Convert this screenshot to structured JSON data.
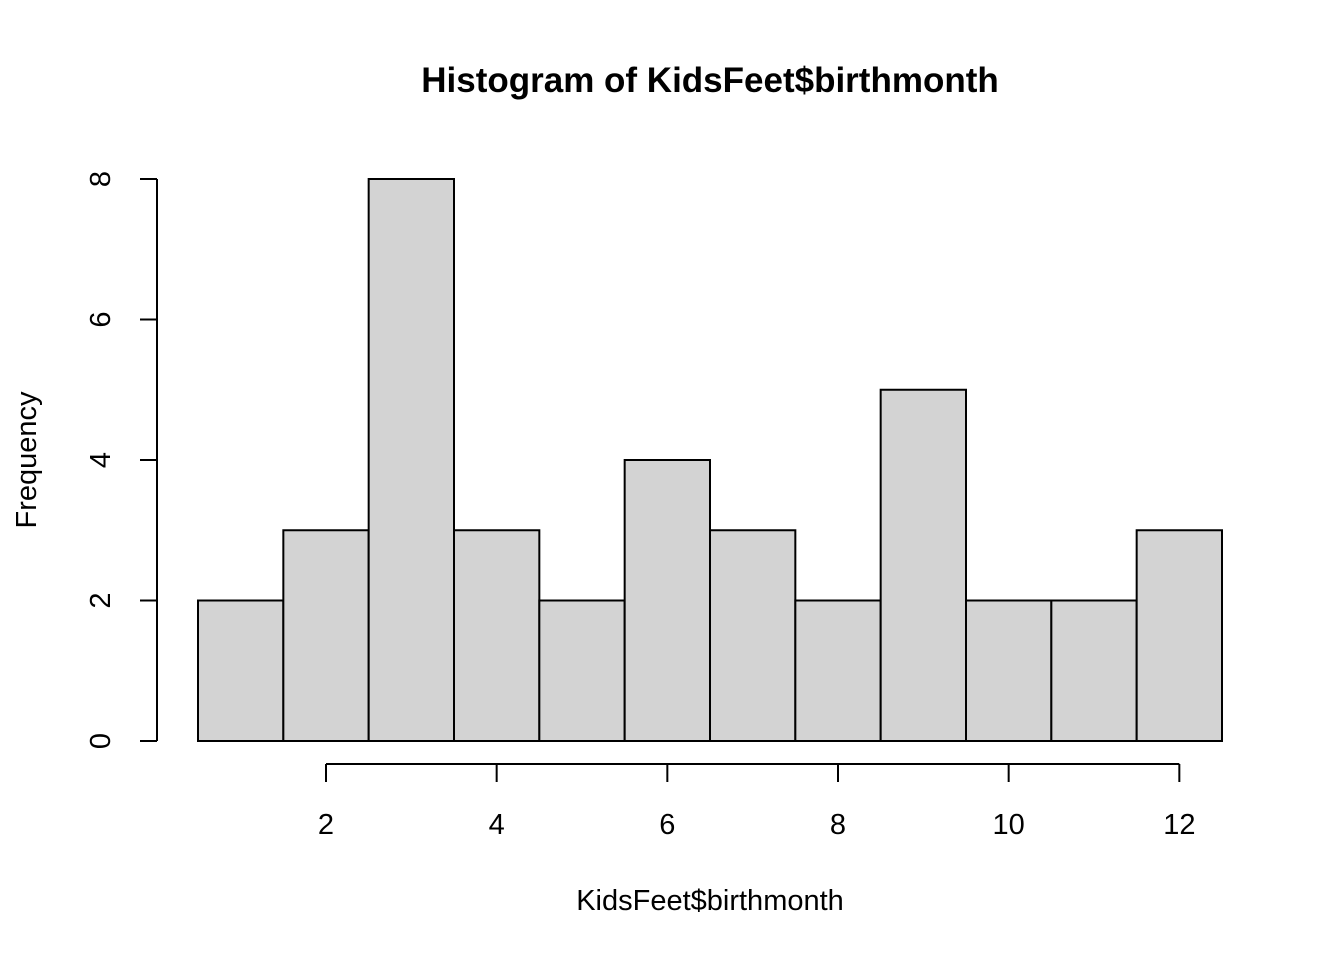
{
  "chart_data": {
    "type": "bar",
    "subtype": "histogram",
    "title": "Histogram of KidsFeet$birthmonth",
    "xlabel": "KidsFeet$birthmonth",
    "ylabel": "Frequency",
    "bins": [
      {
        "from": 0.5,
        "to": 1.5,
        "count": 2
      },
      {
        "from": 1.5,
        "to": 2.5,
        "count": 3
      },
      {
        "from": 2.5,
        "to": 3.5,
        "count": 8
      },
      {
        "from": 3.5,
        "to": 4.5,
        "count": 3
      },
      {
        "from": 4.5,
        "to": 5.5,
        "count": 2
      },
      {
        "from": 5.5,
        "to": 6.5,
        "count": 4
      },
      {
        "from": 6.5,
        "to": 7.5,
        "count": 3
      },
      {
        "from": 7.5,
        "to": 8.5,
        "count": 2
      },
      {
        "from": 8.5,
        "to": 9.5,
        "count": 5
      },
      {
        "from": 9.5,
        "to": 10.5,
        "count": 2
      },
      {
        "from": 10.5,
        "to": 11.5,
        "count": 2
      },
      {
        "from": 11.5,
        "to": 12.5,
        "count": 3
      }
    ],
    "xticks": [
      2,
      4,
      6,
      8,
      10,
      12
    ],
    "yticks": [
      0,
      2,
      4,
      6,
      8
    ],
    "xlim": [
      0.5,
      12.5
    ],
    "ylim": [
      0,
      8
    ],
    "grid": false,
    "bar_color": "#d3d3d3",
    "edge_color": "#000000"
  }
}
